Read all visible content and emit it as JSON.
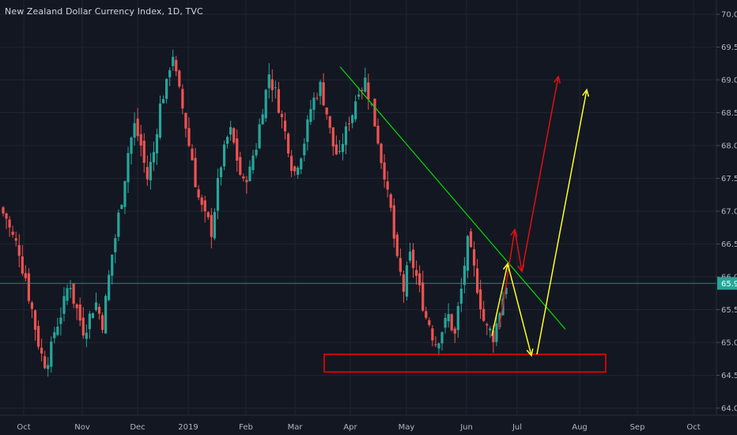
{
  "header": {
    "title": "New Zealand Dollar Currency Index, 1D, TVC"
  },
  "price_axis": {
    "ticks": [
      "70.0",
      "69.5",
      "69.0",
      "68.5",
      "68.0",
      "67.5",
      "67.0",
      "66.5",
      "66.0",
      "65.5",
      "65.0",
      "64.5",
      "64.0"
    ],
    "current_price_label": "65.9"
  },
  "time_axis": {
    "ticks": [
      "Oct",
      "Nov",
      "Dec",
      "2019",
      "Feb",
      "Mar",
      "Apr",
      "May",
      "Jun",
      "Jul",
      "Aug",
      "Sep",
      "Oct"
    ]
  },
  "colors": {
    "background": "#131722",
    "grid": "#1f2432",
    "up": "#26a69a",
    "down": "#ef5350",
    "trendline": "#00e000",
    "support_box": "#ff0000",
    "red_arrows": "#e01010",
    "yellow_arrows": "#ffff20",
    "current_price_line": "#26a69a"
  },
  "chart_data": {
    "type": "candlestick",
    "title": "New Zealand Dollar Currency Index, 1D, TVC",
    "ylim": [
      63.8,
      70.2
    ],
    "current_price": 65.9,
    "grid": true,
    "x_axis_ticks": [
      "Oct",
      "Nov",
      "Dec",
      "2019",
      "Feb",
      "Mar",
      "Apr",
      "May",
      "Jun",
      "Jul",
      "Aug",
      "Sep",
      "Oct"
    ],
    "price_path_closes": [
      66.9,
      66.6,
      66.4,
      66.0,
      65.5,
      65.0,
      64.7,
      64.9,
      65.3,
      65.6,
      65.9,
      65.5,
      65.2,
      65.4,
      65.6,
      65.3,
      66.0,
      66.6,
      67.2,
      67.9,
      68.3,
      68.0,
      67.5,
      67.9,
      68.6,
      68.9,
      69.4,
      68.8,
      68.3,
      67.8,
      67.2,
      66.9,
      66.7,
      67.4,
      67.9,
      68.2,
      67.8,
      67.4,
      67.6,
      68.0,
      68.6,
      69.1,
      68.8,
      68.4,
      68.0,
      67.6,
      67.9,
      68.3,
      68.7,
      68.9,
      68.5,
      68.0,
      67.8,
      68.2,
      68.5,
      68.9,
      69.0,
      68.6,
      68.1,
      67.6,
      67.0,
      66.2,
      65.8,
      66.3,
      66.0,
      65.6,
      65.3,
      65.0,
      65.2,
      65.4,
      65.1,
      65.8,
      66.5,
      66.1,
      65.6,
      65.2,
      65.1,
      65.5,
      65.9
    ],
    "annotations": {
      "trendline": {
        "start": {
          "date": "Mar",
          "value": 69.2
        },
        "end": {
          "date": "Jul",
          "value": 65.2
        }
      },
      "support_zone": {
        "low": 64.55,
        "high": 64.82,
        "start": "Apr",
        "end": "Aug"
      },
      "red_arrows": [
        [
          {
            "date": "Jun",
            "value": 65.2
          },
          {
            "date": "Jul",
            "value": 66.7
          }
        ],
        [
          {
            "date": "Jul",
            "value": 66.7
          },
          {
            "date": "Jul",
            "value": 66.1
          }
        ],
        [
          {
            "date": "Jul",
            "value": 66.1
          },
          {
            "date": "Jul",
            "value": 69.0
          }
        ]
      ],
      "yellow_arrows": [
        [
          {
            "date": "Jun",
            "value": 65.2
          },
          {
            "date": "Jul",
            "value": 66.2
          }
        ],
        [
          {
            "date": "Jul",
            "value": 66.2
          },
          {
            "date": "Jul",
            "value": 64.8
          }
        ],
        [
          {
            "date": "Jul",
            "value": 64.8
          },
          {
            "date": "Aug",
            "value": 68.8
          }
        ]
      ]
    }
  }
}
